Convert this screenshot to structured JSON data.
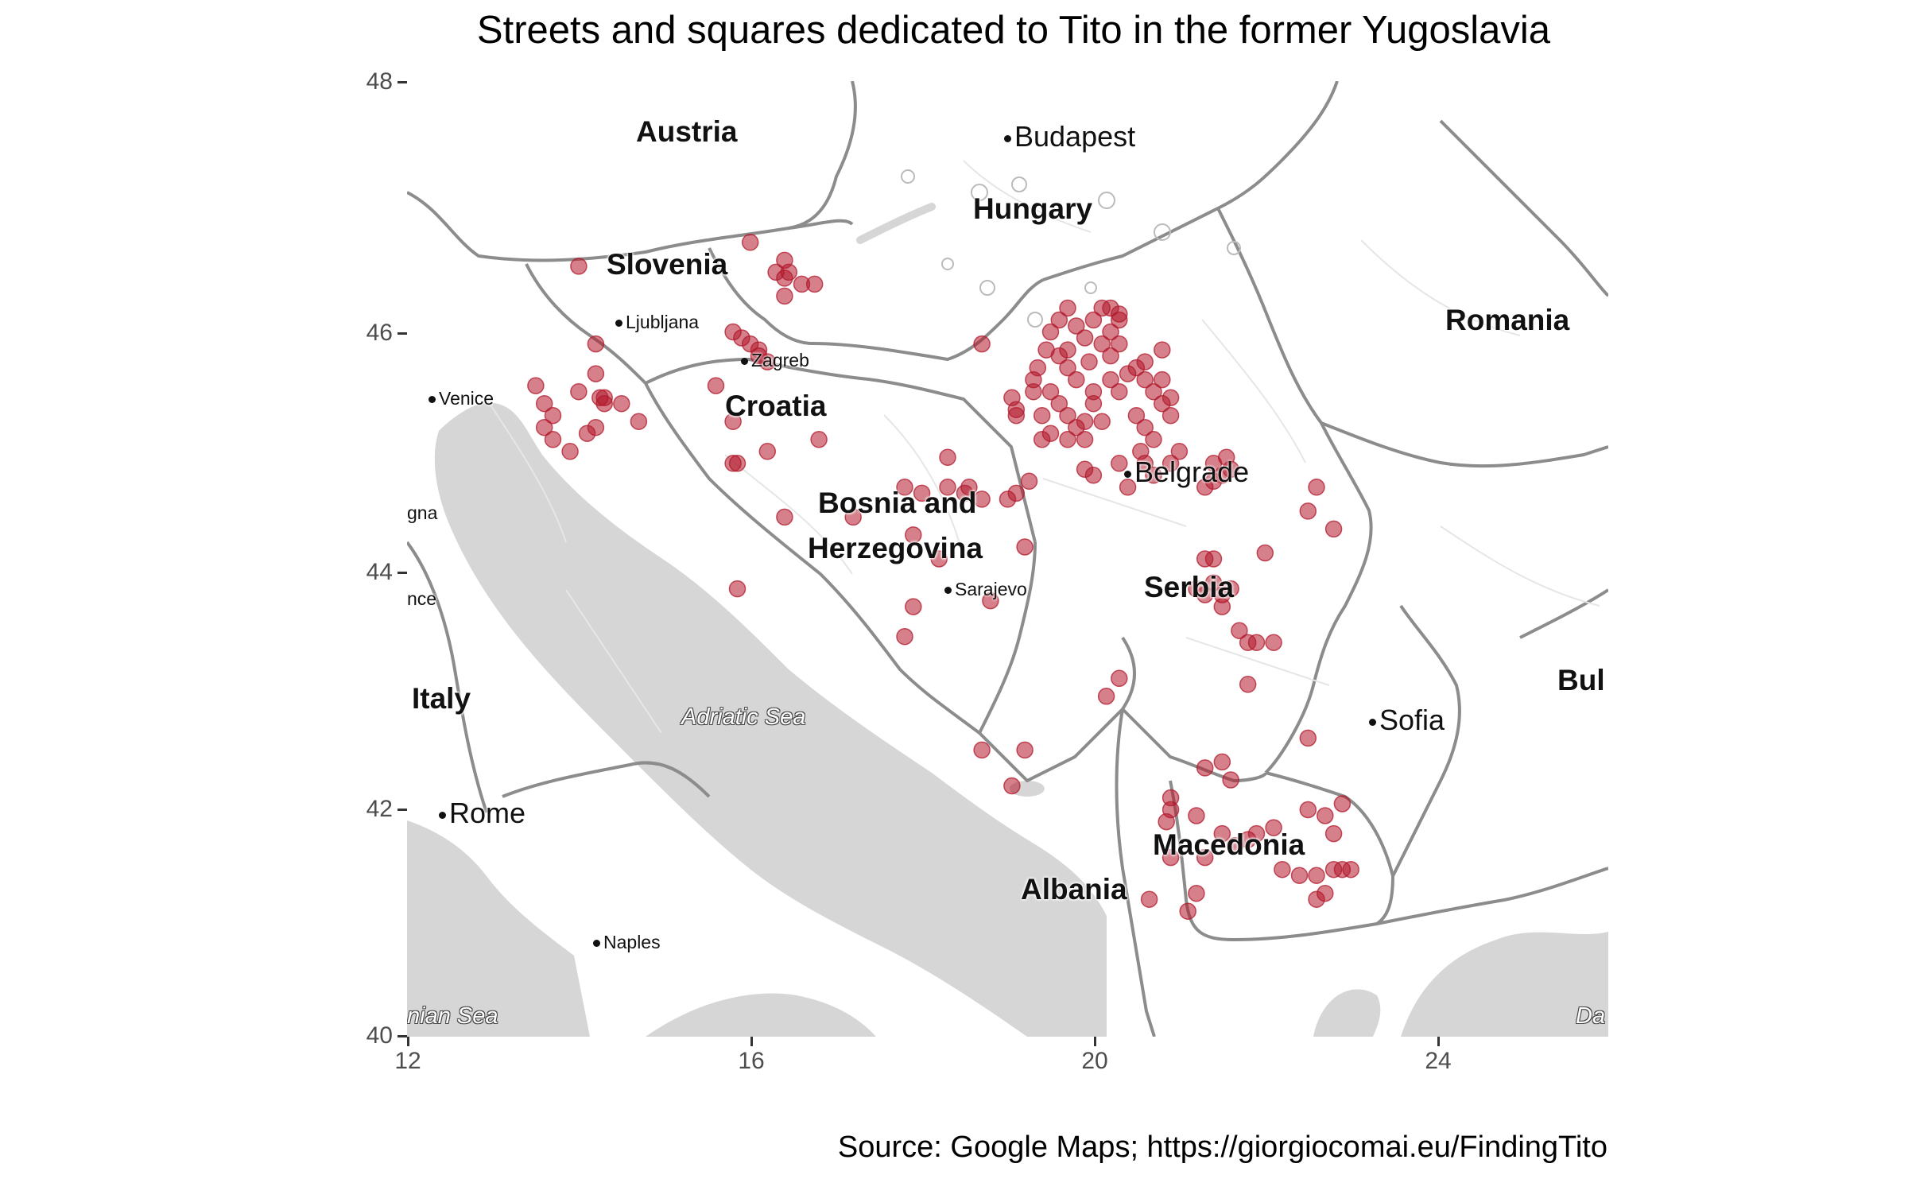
{
  "title": "Streets and squares dedicated to Tito in the former Yugoslavia",
  "caption": "Source: Google Maps; https://giorgiocomai.eu/FindingTito",
  "axes": {
    "x_ticks": [
      "12",
      "16",
      "20",
      "24"
    ],
    "y_ticks": [
      "48",
      "46",
      "44",
      "42",
      "40"
    ],
    "x_range": [
      12,
      26
    ],
    "y_range": [
      40,
      48
    ]
  },
  "map_labels": {
    "countries": {
      "austria": "Austria",
      "hungary": "Hungary",
      "slovenia": "Slovenia",
      "romania": "Romania",
      "croatia": "Croatia",
      "bosnia_1": "Bosnia and",
      "bosnia_2": "Herzegovina",
      "serbia": "Serbia",
      "italy": "Italy",
      "bulgaria_partial": "Bul",
      "macedonia": "Macedonia",
      "albania": "Albania"
    },
    "cities": {
      "budapest": "Budapest",
      "ljubljana": "Ljubljana",
      "zagreb": "Zagreb",
      "venice": "Venice",
      "belgrade": "Belgrade",
      "sarajevo": "Sarajevo",
      "sofia": "Sofia",
      "rome": "Rome",
      "naples": "Naples",
      "bologna_partial": "gna",
      "florence_partial": "nce"
    },
    "seas": {
      "adriatic": "Adriatic Sea",
      "ionian_partial": "nian Sea",
      "aegean_partial": "Da"
    }
  },
  "colors": {
    "point": "#b2182b",
    "sea": "#d6d6d6",
    "land": "#ffffff",
    "border": "#8c8c8c"
  },
  "chart_data": {
    "type": "scatter",
    "title": "Streets and squares dedicated to Tito in the former Yugoslavia",
    "xlim": [
      12,
      26
    ],
    "ylim": [
      40,
      48
    ],
    "points": [
      [
        16.0,
        46.65
      ],
      [
        16.4,
        46.5
      ],
      [
        16.45,
        46.4
      ],
      [
        16.3,
        46.4
      ],
      [
        16.4,
        46.35
      ],
      [
        16.6,
        46.3
      ],
      [
        16.75,
        46.3
      ],
      [
        16.4,
        46.2
      ],
      [
        14.0,
        46.45
      ],
      [
        15.8,
        45.9
      ],
      [
        15.9,
        45.85
      ],
      [
        16.1,
        45.75
      ],
      [
        16.0,
        45.8
      ],
      [
        16.2,
        45.65
      ],
      [
        16.1,
        45.7
      ],
      [
        14.2,
        45.8
      ],
      [
        14.2,
        45.55
      ],
      [
        15.6,
        45.45
      ],
      [
        15.8,
        45.15
      ],
      [
        13.5,
        45.45
      ],
      [
        13.6,
        45.3
      ],
      [
        13.7,
        45.2
      ],
      [
        13.6,
        45.1
      ],
      [
        13.7,
        45.0
      ],
      [
        13.9,
        44.9
      ],
      [
        14.0,
        45.4
      ],
      [
        14.1,
        45.05
      ],
      [
        14.25,
        45.35
      ],
      [
        14.3,
        45.3
      ],
      [
        14.3,
        45.35
      ],
      [
        14.5,
        45.3
      ],
      [
        14.7,
        45.15
      ],
      [
        14.2,
        45.1
      ],
      [
        15.8,
        44.8
      ],
      [
        15.85,
        44.8
      ],
      [
        16.2,
        44.9
      ],
      [
        16.8,
        45.0
      ],
      [
        16.4,
        44.35
      ],
      [
        15.85,
        43.75
      ],
      [
        17.2,
        44.35
      ],
      [
        17.8,
        44.6
      ],
      [
        18.0,
        44.55
      ],
      [
        18.3,
        44.6
      ],
      [
        18.5,
        44.55
      ],
      [
        18.7,
        44.5
      ],
      [
        18.3,
        44.85
      ],
      [
        18.55,
        44.6
      ],
      [
        17.9,
        44.2
      ],
      [
        18.2,
        44.0
      ],
      [
        17.9,
        43.6
      ],
      [
        17.8,
        43.35
      ],
      [
        18.8,
        43.65
      ],
      [
        19.0,
        44.5
      ],
      [
        19.1,
        44.55
      ],
      [
        19.25,
        44.65
      ],
      [
        19.2,
        44.1
      ],
      [
        18.7,
        45.8
      ],
      [
        19.1,
        45.2
      ],
      [
        19.1,
        45.25
      ],
      [
        19.05,
        45.35
      ],
      [
        19.3,
        45.4
      ],
      [
        19.4,
        45.2
      ],
      [
        19.3,
        45.5
      ],
      [
        19.35,
        45.6
      ],
      [
        19.45,
        45.75
      ],
      [
        19.5,
        45.9
      ],
      [
        19.6,
        46.0
      ],
      [
        19.7,
        46.1
      ],
      [
        19.8,
        45.95
      ],
      [
        19.9,
        45.85
      ],
      [
        20.0,
        46.0
      ],
      [
        20.1,
        46.1
      ],
      [
        20.2,
        45.9
      ],
      [
        20.3,
        46.0
      ],
      [
        20.2,
        46.1
      ],
      [
        20.1,
        45.8
      ],
      [
        20.3,
        45.8
      ],
      [
        19.6,
        45.7
      ],
      [
        19.7,
        45.6
      ],
      [
        19.8,
        45.5
      ],
      [
        19.5,
        45.4
      ],
      [
        19.6,
        45.3
      ],
      [
        19.7,
        45.2
      ],
      [
        19.8,
        45.1
      ],
      [
        19.9,
        45.0
      ],
      [
        19.7,
        45.0
      ],
      [
        19.5,
        45.05
      ],
      [
        19.4,
        45.0
      ],
      [
        19.9,
        45.15
      ],
      [
        20.0,
        45.3
      ],
      [
        20.2,
        45.5
      ],
      [
        20.3,
        45.4
      ],
      [
        20.5,
        45.6
      ],
      [
        20.6,
        45.5
      ],
      [
        20.7,
        45.4
      ],
      [
        20.8,
        45.3
      ],
      [
        20.5,
        45.2
      ],
      [
        20.6,
        45.1
      ],
      [
        20.7,
        45.0
      ],
      [
        20.55,
        44.9
      ],
      [
        20.6,
        44.8
      ],
      [
        20.9,
        45.2
      ],
      [
        20.9,
        45.35
      ],
      [
        20.8,
        45.5
      ],
      [
        20.8,
        45.75
      ],
      [
        20.6,
        45.65
      ],
      [
        20.4,
        45.55
      ],
      [
        20.0,
        45.4
      ],
      [
        20.1,
        45.15
      ],
      [
        19.9,
        44.75
      ],
      [
        20.0,
        44.7
      ],
      [
        20.3,
        44.8
      ],
      [
        20.4,
        44.6
      ],
      [
        20.7,
        44.7
      ],
      [
        20.9,
        44.8
      ],
      [
        21.0,
        44.9
      ],
      [
        21.3,
        44.6
      ],
      [
        21.4,
        44.65
      ],
      [
        21.5,
        44.7
      ],
      [
        21.6,
        44.75
      ],
      [
        21.4,
        44.8
      ],
      [
        21.55,
        44.85
      ],
      [
        20.3,
        46.05
      ],
      [
        20.2,
        45.7
      ],
      [
        19.95,
        45.65
      ],
      [
        19.7,
        45.75
      ],
      [
        21.3,
        44.0
      ],
      [
        21.4,
        44.0
      ],
      [
        21.2,
        43.75
      ],
      [
        21.4,
        43.8
      ],
      [
        21.5,
        43.7
      ],
      [
        21.6,
        43.75
      ],
      [
        21.5,
        43.6
      ],
      [
        21.3,
        43.7
      ],
      [
        21.7,
        43.4
      ],
      [
        21.8,
        43.3
      ],
      [
        21.9,
        43.3
      ],
      [
        22.1,
        43.3
      ],
      [
        21.8,
        42.95
      ],
      [
        22.0,
        44.05
      ],
      [
        22.6,
        44.6
      ],
      [
        22.5,
        44.4
      ],
      [
        22.8,
        44.25
      ],
      [
        22.5,
        42.5
      ],
      [
        21.5,
        42.3
      ],
      [
        21.6,
        42.15
      ],
      [
        21.3,
        42.25
      ],
      [
        20.3,
        43.0
      ],
      [
        20.15,
        42.85
      ],
      [
        20.9,
        42.0
      ],
      [
        20.9,
        41.9
      ],
      [
        20.85,
        41.8
      ],
      [
        20.9,
        41.5
      ],
      [
        21.3,
        41.5
      ],
      [
        21.2,
        41.2
      ],
      [
        21.1,
        41.05
      ],
      [
        20.65,
        41.15
      ],
      [
        21.5,
        41.7
      ],
      [
        21.65,
        41.6
      ],
      [
        21.8,
        41.65
      ],
      [
        21.9,
        41.7
      ],
      [
        22.2,
        41.4
      ],
      [
        22.4,
        41.35
      ],
      [
        22.6,
        41.35
      ],
      [
        22.6,
        41.15
      ],
      [
        22.7,
        41.2
      ],
      [
        22.8,
        41.4
      ],
      [
        22.9,
        41.4
      ],
      [
        23.0,
        41.4
      ],
      [
        22.8,
        41.7
      ],
      [
        22.7,
        41.85
      ],
      [
        22.9,
        41.95
      ],
      [
        22.5,
        41.9
      ],
      [
        22.1,
        41.75
      ],
      [
        21.2,
        41.85
      ],
      [
        18.7,
        42.4
      ],
      [
        19.2,
        42.4
      ],
      [
        19.05,
        42.1
      ]
    ]
  }
}
